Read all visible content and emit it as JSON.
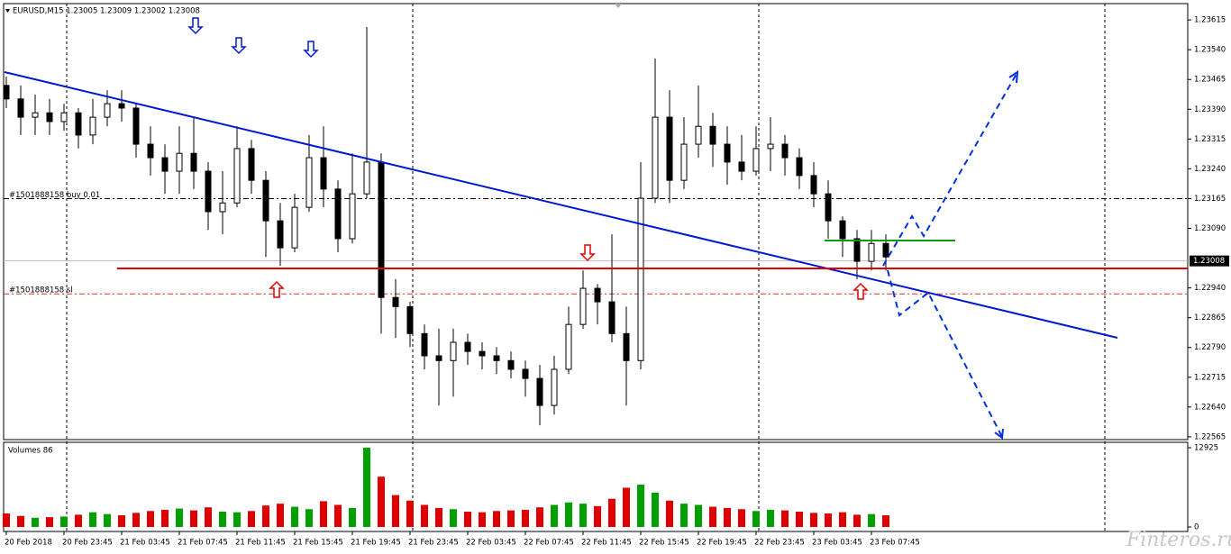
{
  "chart_data": {
    "type": "candlestick",
    "title": "EURUSD,M15  1.23005 1.23009 1.23002 1.23008",
    "x_tick_labels": [
      "20 Feb 2018",
      "20 Feb 23:45",
      "21 Feb 03:45",
      "21 Feb 07:45",
      "21 Feb 11:45",
      "21 Feb 15:45",
      "21 Feb 19:45",
      "21 Feb 23:45",
      "22 Feb 03:45",
      "22 Feb 07:45",
      "22 Feb 11:45",
      "22 Feb 15:45",
      "22 Feb 19:45",
      "22 Feb 23:45",
      "23 Feb 03:45",
      "23 Feb 07:45"
    ],
    "open": [
      1.2345,
      1.23416,
      1.2337,
      1.23381,
      1.23359,
      1.23381,
      1.23325,
      1.2337,
      1.23404,
      1.23393,
      1.23302,
      1.23268,
      1.23234,
      1.23279,
      1.23234,
      1.23132,
      1.23154,
      1.23291,
      1.23211,
      1.23109,
      1.23041,
      1.23143,
      1.23268,
      1.23189,
      1.23064,
      1.23177,
      1.23257,
      1.22916,
      1.22893,
      1.22825,
      1.22769,
      1.22757,
      1.22803,
      1.2278,
      1.22769,
      1.22757,
      1.22735,
      1.22712,
      1.22644,
      1.22735,
      1.22848,
      1.22939,
      1.22905,
      1.22825,
      1.22757,
      1.23166,
      1.2337,
      1.23211,
      1.23302,
      1.23347,
      1.23302,
      1.23257,
      1.23234,
      1.23291,
      1.23302,
      1.23268,
      1.23223,
      1.23177,
      1.23109,
      1.23064,
      1.23007,
      1.23052
    ],
    "high": [
      1.23472,
      1.2345,
      1.23427,
      1.23416,
      1.23404,
      1.23393,
      1.23416,
      1.23438,
      1.23438,
      1.23404,
      1.23347,
      1.23302,
      1.23347,
      1.2337,
      1.23257,
      1.23234,
      1.23347,
      1.23313,
      1.23234,
      1.23154,
      1.23177,
      1.23325,
      1.23347,
      1.23211,
      1.23279,
      1.23597,
      1.23279,
      1.22962,
      1.22905,
      1.22848,
      1.22837,
      1.22837,
      1.22825,
      1.22803,
      1.22791,
      1.2278,
      1.22757,
      1.22746,
      1.22769,
      1.22893,
      1.22984,
      1.2295,
      1.23075,
      1.22893,
      1.23257,
      1.23518,
      1.23438,
      1.2337,
      1.2345,
      1.23381,
      1.23347,
      1.23325,
      1.23347,
      1.2337,
      1.23325,
      1.23291,
      1.23257,
      1.23211,
      1.2312,
      1.23086,
      1.23086,
      1.23075
    ],
    "low": [
      1.23393,
      1.23325,
      1.23325,
      1.23325,
      1.23336,
      1.23291,
      1.23302,
      1.23347,
      1.23359,
      1.23268,
      1.23223,
      1.23177,
      1.23177,
      1.23189,
      1.23086,
      1.23075,
      1.23143,
      1.23177,
      1.23018,
      1.22996,
      1.2303,
      1.23132,
      1.23143,
      1.2303,
      1.23052,
      1.23166,
      1.22825,
      1.22814,
      1.22791,
      1.22735,
      1.22644,
      1.22666,
      1.22746,
      1.22735,
      1.22723,
      1.22712,
      1.22666,
      1.22594,
      1.22621,
      1.22723,
      1.22837,
      1.22848,
      1.22803,
      1.22644,
      1.22735,
      1.23154,
      1.23154,
      1.23189,
      1.23268,
      1.23245,
      1.232,
      1.23211,
      1.23223,
      1.23234,
      1.23223,
      1.23189,
      1.23143,
      1.23064,
      1.23018,
      1.22962,
      1.22984,
      1.22984
    ],
    "close": [
      1.23416,
      1.2337,
      1.23381,
      1.23359,
      1.23381,
      1.23325,
      1.2337,
      1.23404,
      1.23393,
      1.23302,
      1.23268,
      1.23234,
      1.23279,
      1.23234,
      1.23132,
      1.23154,
      1.23291,
      1.23211,
      1.23109,
      1.23041,
      1.23143,
      1.23268,
      1.23189,
      1.23064,
      1.23177,
      1.23257,
      1.22916,
      1.22893,
      1.22825,
      1.22769,
      1.22757,
      1.22803,
      1.2278,
      1.22769,
      1.22757,
      1.22735,
      1.22712,
      1.22644,
      1.22735,
      1.22848,
      1.22939,
      1.22905,
      1.22825,
      1.22757,
      1.23166,
      1.2337,
      1.23211,
      1.23302,
      1.23347,
      1.23302,
      1.23257,
      1.23234,
      1.23291,
      1.23302,
      1.23268,
      1.23223,
      1.23177,
      1.23109,
      1.23064,
      1.23007,
      1.23052,
      1.23018
    ],
    "ylim": [
      1.22558,
      1.23647
    ],
    "yticks": [
      1.23615,
      {
        "value": 1.2354,
        "label": "1.23540"
      },
      1.23465,
      {
        "value": 1.2339,
        "label": "1.23390"
      },
      1.23315,
      {
        "value": 1.2324,
        "label": "1.23240"
      },
      1.23165,
      {
        "value": 1.2309,
        "label": "1.23090"
      },
      {
        "value": 1.2294,
        "label": "1.22940"
      },
      1.22865,
      {
        "value": 1.2279,
        "label": "1.22790"
      },
      1.22715,
      {
        "value": 1.2264,
        "label": "1.22640"
      },
      1.22565
    ],
    "current_price": {
      "value": 1.23008,
      "label": "1.23008"
    },
    "orders": [
      {
        "label": "#1501888158 buy 0.01",
        "value": 1.23165,
        "color": "#000000"
      },
      {
        "label": "#1501888158 sl",
        "value": 1.22925,
        "color": "#e03020"
      }
    ],
    "candle_color": "#000000",
    "volumes": {
      "title": "Volumes 86",
      "values": [
        2200,
        1800,
        1500,
        1600,
        1700,
        2000,
        2400,
        2100,
        1900,
        2300,
        2600,
        2800,
        3000,
        2700,
        3200,
        2500,
        2400,
        2600,
        3500,
        3800,
        3300,
        2900,
        4200,
        3600,
        3100,
        12925,
        8200,
        5200,
        4300,
        3600,
        3100,
        2900,
        2500,
        2400,
        2600,
        2700,
        2800,
        3200,
        3600,
        4000,
        3800,
        3400,
        4600,
        6400,
        6900,
        5600,
        4300,
        3800,
        3600,
        3300,
        3100,
        2900,
        2600,
        2800,
        2700,
        2500,
        2300,
        2200,
        2400,
        2000,
        2100,
        1900
      ],
      "ylim": [
        0,
        12925
      ],
      "yticks": [
        12925,
        0
      ],
      "up_color": "#00a000",
      "down_color": "#e00000"
    },
    "watermark": "Finteros.ru"
  }
}
